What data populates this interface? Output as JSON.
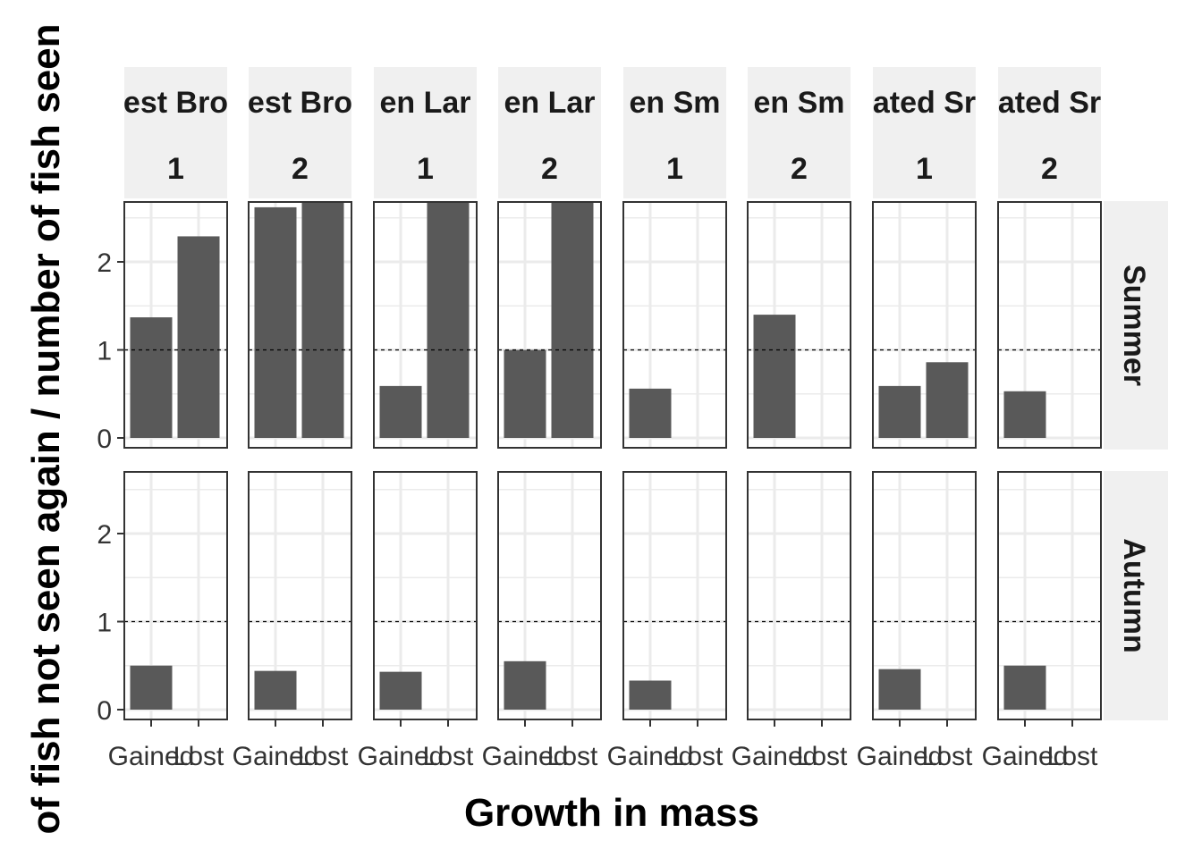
{
  "chart_data": {
    "type": "bar",
    "xlabel": "Growth in mass",
    "ylabel": "of fish not seen again / number of fish seen",
    "x_categories": [
      "Gained",
      "Lost"
    ],
    "x_tick_labels": [
      "Gained",
      "Lost"
    ],
    "ylim": [
      0,
      2.7
    ],
    "y_ticks": [
      0,
      1,
      2
    ],
    "reference_line": 1,
    "grid": true,
    "column_strips": [
      {
        "name": "est Bro",
        "group": "1"
      },
      {
        "name": "est Bro",
        "group": "2"
      },
      {
        "name": "en Lar",
        "group": "1"
      },
      {
        "name": "en Lar",
        "group": "2"
      },
      {
        "name": "en Sm",
        "group": "1"
      },
      {
        "name": "en Sm",
        "group": "2"
      },
      {
        "name": "ated Sr",
        "group": "1"
      },
      {
        "name": "ated Sr",
        "group": "2"
      }
    ],
    "row_strips": [
      "Summer",
      "Autumn"
    ],
    "panels": [
      {
        "row": 0,
        "col": 0,
        "values": [
          1.37,
          2.29
        ]
      },
      {
        "row": 0,
        "col": 1,
        "values": [
          2.62,
          2.75
        ]
      },
      {
        "row": 0,
        "col": 2,
        "values": [
          0.59,
          2.75
        ]
      },
      {
        "row": 0,
        "col": 3,
        "values": [
          1.0,
          2.75
        ]
      },
      {
        "row": 0,
        "col": 4,
        "values": [
          0.56,
          null
        ]
      },
      {
        "row": 0,
        "col": 5,
        "values": [
          1.4,
          null
        ]
      },
      {
        "row": 0,
        "col": 6,
        "values": [
          0.59,
          0.86
        ]
      },
      {
        "row": 0,
        "col": 7,
        "values": [
          0.53,
          null
        ]
      },
      {
        "row": 1,
        "col": 0,
        "values": [
          0.5,
          null
        ]
      },
      {
        "row": 1,
        "col": 1,
        "values": [
          0.44,
          null
        ]
      },
      {
        "row": 1,
        "col": 2,
        "values": [
          0.43,
          null
        ]
      },
      {
        "row": 1,
        "col": 3,
        "values": [
          0.55,
          null
        ]
      },
      {
        "row": 1,
        "col": 4,
        "values": [
          0.33,
          null
        ]
      },
      {
        "row": 1,
        "col": 5,
        "values": [
          null,
          null
        ]
      },
      {
        "row": 1,
        "col": 6,
        "values": [
          0.46,
          null
        ]
      },
      {
        "row": 1,
        "col": 7,
        "values": [
          0.5,
          null
        ]
      }
    ],
    "colors": {
      "bar": "#595959",
      "strip_bg": "#f0f0f0",
      "grid": "#ebebeb",
      "panel_border": "#333333",
      "reference_line": "#000000"
    }
  }
}
